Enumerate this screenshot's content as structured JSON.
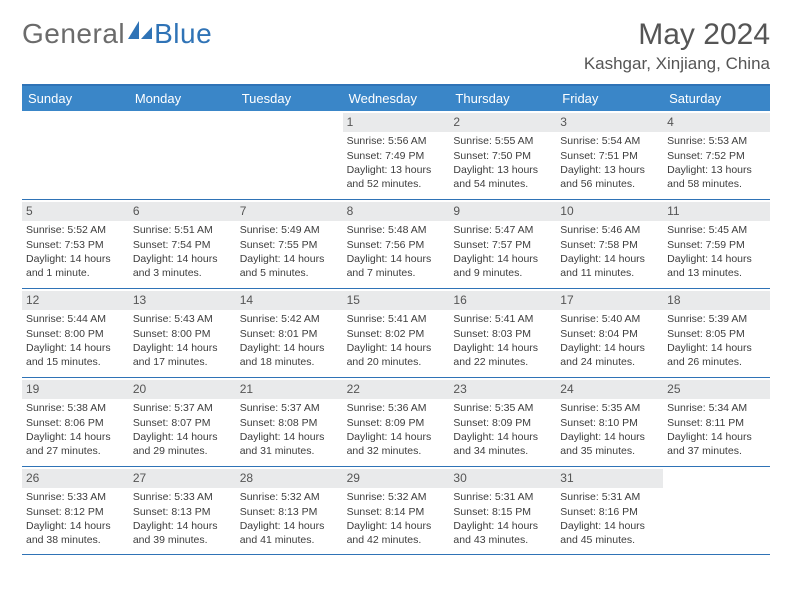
{
  "logo": {
    "word1": "General",
    "word2": "Blue"
  },
  "title": {
    "month": "May 2024",
    "location": "Kashgar, Xinjiang, China"
  },
  "colors": {
    "brand": "#2f73b6",
    "header_bg": "#3a86c8",
    "header_text": "#ffffff",
    "daynum_bg": "#e9eaeb",
    "text": "#3d3d3d"
  },
  "day_headers": [
    "Sunday",
    "Monday",
    "Tuesday",
    "Wednesday",
    "Thursday",
    "Friday",
    "Saturday"
  ],
  "weeks": [
    [
      {
        "empty": true
      },
      {
        "empty": true
      },
      {
        "empty": true
      },
      {
        "num": "1",
        "sunrise": "Sunrise: 5:56 AM",
        "sunset": "Sunset: 7:49 PM",
        "daylight": "Daylight: 13 hours and 52 minutes."
      },
      {
        "num": "2",
        "sunrise": "Sunrise: 5:55 AM",
        "sunset": "Sunset: 7:50 PM",
        "daylight": "Daylight: 13 hours and 54 minutes."
      },
      {
        "num": "3",
        "sunrise": "Sunrise: 5:54 AM",
        "sunset": "Sunset: 7:51 PM",
        "daylight": "Daylight: 13 hours and 56 minutes."
      },
      {
        "num": "4",
        "sunrise": "Sunrise: 5:53 AM",
        "sunset": "Sunset: 7:52 PM",
        "daylight": "Daylight: 13 hours and 58 minutes."
      }
    ],
    [
      {
        "num": "5",
        "sunrise": "Sunrise: 5:52 AM",
        "sunset": "Sunset: 7:53 PM",
        "daylight": "Daylight: 14 hours and 1 minute."
      },
      {
        "num": "6",
        "sunrise": "Sunrise: 5:51 AM",
        "sunset": "Sunset: 7:54 PM",
        "daylight": "Daylight: 14 hours and 3 minutes."
      },
      {
        "num": "7",
        "sunrise": "Sunrise: 5:49 AM",
        "sunset": "Sunset: 7:55 PM",
        "daylight": "Daylight: 14 hours and 5 minutes."
      },
      {
        "num": "8",
        "sunrise": "Sunrise: 5:48 AM",
        "sunset": "Sunset: 7:56 PM",
        "daylight": "Daylight: 14 hours and 7 minutes."
      },
      {
        "num": "9",
        "sunrise": "Sunrise: 5:47 AM",
        "sunset": "Sunset: 7:57 PM",
        "daylight": "Daylight: 14 hours and 9 minutes."
      },
      {
        "num": "10",
        "sunrise": "Sunrise: 5:46 AM",
        "sunset": "Sunset: 7:58 PM",
        "daylight": "Daylight: 14 hours and 11 minutes."
      },
      {
        "num": "11",
        "sunrise": "Sunrise: 5:45 AM",
        "sunset": "Sunset: 7:59 PM",
        "daylight": "Daylight: 14 hours and 13 minutes."
      }
    ],
    [
      {
        "num": "12",
        "sunrise": "Sunrise: 5:44 AM",
        "sunset": "Sunset: 8:00 PM",
        "daylight": "Daylight: 14 hours and 15 minutes."
      },
      {
        "num": "13",
        "sunrise": "Sunrise: 5:43 AM",
        "sunset": "Sunset: 8:00 PM",
        "daylight": "Daylight: 14 hours and 17 minutes."
      },
      {
        "num": "14",
        "sunrise": "Sunrise: 5:42 AM",
        "sunset": "Sunset: 8:01 PM",
        "daylight": "Daylight: 14 hours and 18 minutes."
      },
      {
        "num": "15",
        "sunrise": "Sunrise: 5:41 AM",
        "sunset": "Sunset: 8:02 PM",
        "daylight": "Daylight: 14 hours and 20 minutes."
      },
      {
        "num": "16",
        "sunrise": "Sunrise: 5:41 AM",
        "sunset": "Sunset: 8:03 PM",
        "daylight": "Daylight: 14 hours and 22 minutes."
      },
      {
        "num": "17",
        "sunrise": "Sunrise: 5:40 AM",
        "sunset": "Sunset: 8:04 PM",
        "daylight": "Daylight: 14 hours and 24 minutes."
      },
      {
        "num": "18",
        "sunrise": "Sunrise: 5:39 AM",
        "sunset": "Sunset: 8:05 PM",
        "daylight": "Daylight: 14 hours and 26 minutes."
      }
    ],
    [
      {
        "num": "19",
        "sunrise": "Sunrise: 5:38 AM",
        "sunset": "Sunset: 8:06 PM",
        "daylight": "Daylight: 14 hours and 27 minutes."
      },
      {
        "num": "20",
        "sunrise": "Sunrise: 5:37 AM",
        "sunset": "Sunset: 8:07 PM",
        "daylight": "Daylight: 14 hours and 29 minutes."
      },
      {
        "num": "21",
        "sunrise": "Sunrise: 5:37 AM",
        "sunset": "Sunset: 8:08 PM",
        "daylight": "Daylight: 14 hours and 31 minutes."
      },
      {
        "num": "22",
        "sunrise": "Sunrise: 5:36 AM",
        "sunset": "Sunset: 8:09 PM",
        "daylight": "Daylight: 14 hours and 32 minutes."
      },
      {
        "num": "23",
        "sunrise": "Sunrise: 5:35 AM",
        "sunset": "Sunset: 8:09 PM",
        "daylight": "Daylight: 14 hours and 34 minutes."
      },
      {
        "num": "24",
        "sunrise": "Sunrise: 5:35 AM",
        "sunset": "Sunset: 8:10 PM",
        "daylight": "Daylight: 14 hours and 35 minutes."
      },
      {
        "num": "25",
        "sunrise": "Sunrise: 5:34 AM",
        "sunset": "Sunset: 8:11 PM",
        "daylight": "Daylight: 14 hours and 37 minutes."
      }
    ],
    [
      {
        "num": "26",
        "sunrise": "Sunrise: 5:33 AM",
        "sunset": "Sunset: 8:12 PM",
        "daylight": "Daylight: 14 hours and 38 minutes."
      },
      {
        "num": "27",
        "sunrise": "Sunrise: 5:33 AM",
        "sunset": "Sunset: 8:13 PM",
        "daylight": "Daylight: 14 hours and 39 minutes."
      },
      {
        "num": "28",
        "sunrise": "Sunrise: 5:32 AM",
        "sunset": "Sunset: 8:13 PM",
        "daylight": "Daylight: 14 hours and 41 minutes."
      },
      {
        "num": "29",
        "sunrise": "Sunrise: 5:32 AM",
        "sunset": "Sunset: 8:14 PM",
        "daylight": "Daylight: 14 hours and 42 minutes."
      },
      {
        "num": "30",
        "sunrise": "Sunrise: 5:31 AM",
        "sunset": "Sunset: 8:15 PM",
        "daylight": "Daylight: 14 hours and 43 minutes."
      },
      {
        "num": "31",
        "sunrise": "Sunrise: 5:31 AM",
        "sunset": "Sunset: 8:16 PM",
        "daylight": "Daylight: 14 hours and 45 minutes."
      },
      {
        "empty": true
      }
    ]
  ]
}
